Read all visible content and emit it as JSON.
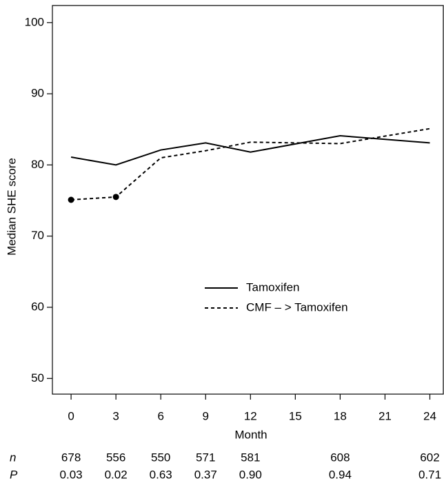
{
  "chart_data": {
    "type": "line",
    "ylabel": "Median SHE score",
    "xlabel": "Month",
    "x": [
      0,
      3,
      6,
      9,
      12,
      18,
      24
    ],
    "series": [
      {
        "name": "Tamoxifen",
        "color": "#000000",
        "dash": "solid",
        "values": [
          81.1,
          80,
          82.1,
          83.1,
          81.8,
          84.1,
          83.1
        ]
      },
      {
        "name": "CMF – > Tamoxifen",
        "color": "#000000",
        "dash": "dashed",
        "values": [
          75.1,
          75.5,
          81,
          82,
          83.2,
          83,
          85.1
        ],
        "marker_indices": [
          0,
          1
        ]
      }
    ],
    "xlim": [
      -1.25,
      24.9
    ],
    "xticks": [
      0,
      3,
      6,
      9,
      12,
      15,
      18,
      21,
      24
    ],
    "ylim": [
      47.8,
      102.4
    ],
    "yticks": [
      50,
      60,
      70,
      80,
      90,
      100
    ],
    "n_label": "n",
    "n": [
      678,
      556,
      550,
      571,
      581,
      608,
      602
    ],
    "p_label": "P",
    "p": [
      "0.03",
      "0.02",
      "0.63",
      "0.37",
      "0.90",
      "0.94",
      "0.71"
    ]
  }
}
